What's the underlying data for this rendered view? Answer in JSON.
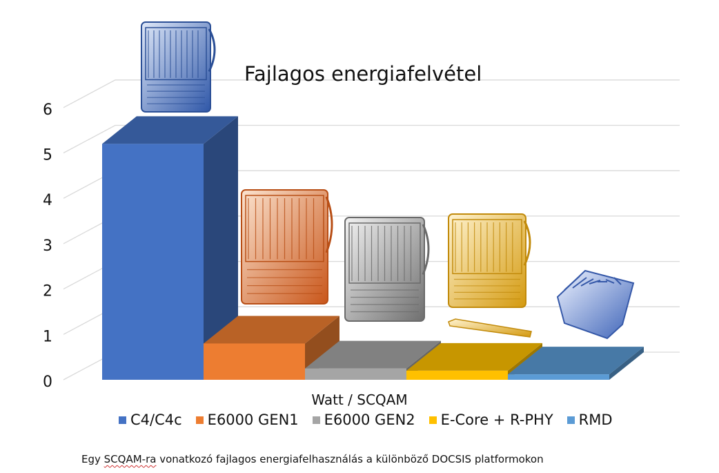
{
  "chart_data": {
    "type": "bar",
    "title": "Fajlagos energiafelvétel",
    "xlabel": "Watt / SCQAM",
    "ylabel": "",
    "ylim": [
      0,
      6
    ],
    "yticks": [
      "0",
      "1",
      "2",
      "3",
      "4",
      "5",
      "6"
    ],
    "grid": true,
    "legend_position": "bottom",
    "series": [
      {
        "name": "C4/C4c",
        "value": 5.2,
        "color": "#4472c4",
        "icon": "cmts-chassis-icon"
      },
      {
        "name": "E6000 GEN1",
        "value": 0.8,
        "color": "#ed7d31",
        "icon": "ccap-chassis-icon"
      },
      {
        "name": "E6000 GEN2",
        "value": 0.25,
        "color": "#a5a5a5",
        "icon": "ccap-chassis-icon"
      },
      {
        "name": "E-Core + R-PHY",
        "value": 0.2,
        "color": "#ffc000",
        "icon": "ccap-chassis-with-rphy-icon"
      },
      {
        "name": "RMD",
        "value": 0.12,
        "color": "#5b9bd5",
        "icon": "remote-node-icon"
      }
    ]
  },
  "caption": {
    "before": "Egy ",
    "underlined": "SCQAM-ra",
    "after": " vonatkozó fajlagos energiafelhasználás a különböző DOCSIS platformokon"
  }
}
